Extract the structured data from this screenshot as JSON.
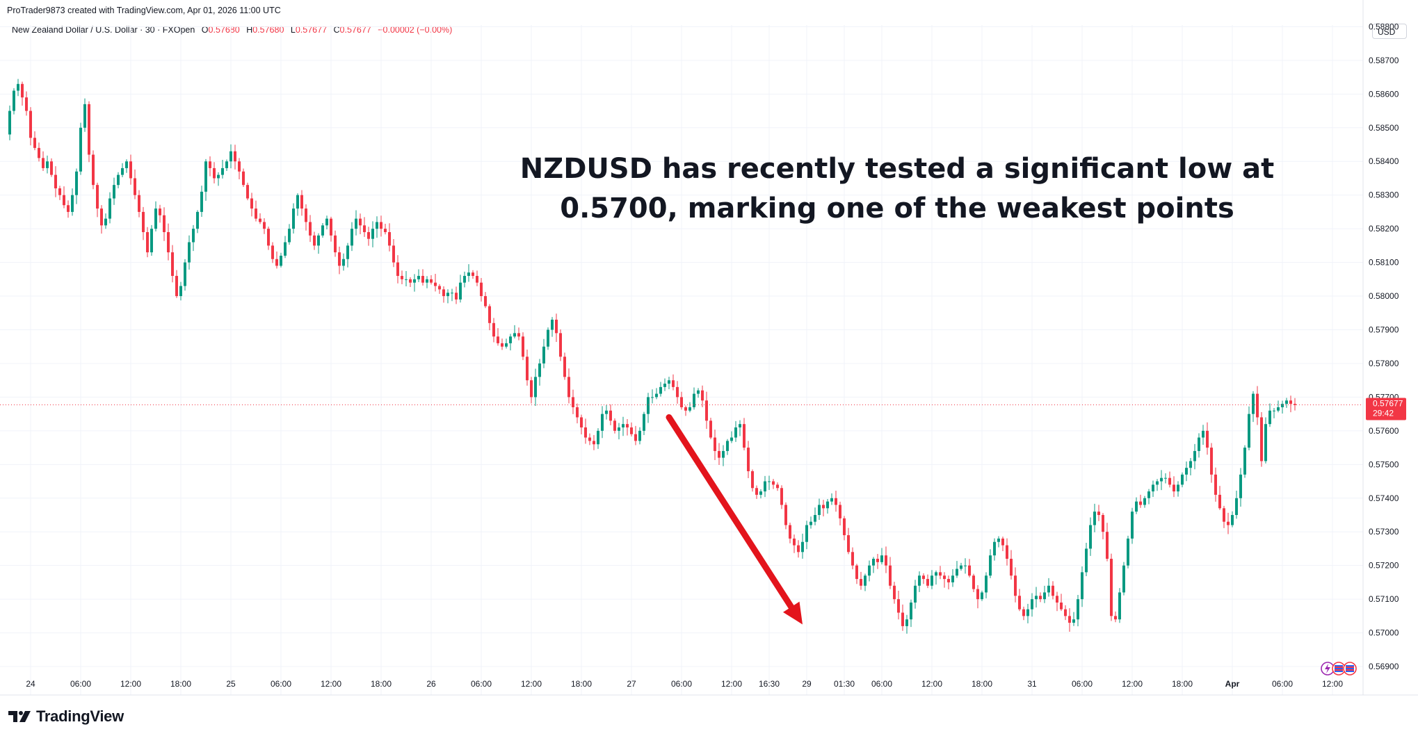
{
  "header": {
    "created_by": "ProTrader9873 created with TradingView.com, Apr 01, 2026 11:00 UTC",
    "symbol": "New Zealand Dollar / U.S. Dollar · 30 · FXOpen",
    "o_label": "O",
    "o_value": "0.57680",
    "h_label": "H",
    "h_value": "0.57680",
    "l_label": "L",
    "l_value": "0.57677",
    "c_label": "C",
    "c_value": "0.57677",
    "change": "−0.00002 (−0.00%)",
    "currency": "USD"
  },
  "brand": {
    "name": "TradingView"
  },
  "price_tag": {
    "price": "0.57677",
    "countdown": "29:42"
  },
  "annotation": {
    "line1": "NZDUSD has recently tested a significant low at",
    "line2": "0.5700, marking one of the weakest points",
    "arrow_color": "#e3141c",
    "arrow_from": {
      "bar": 158,
      "price": 0.5764
    },
    "arrow_to": {
      "bar": 190,
      "price": 0.57025
    }
  },
  "colors": {
    "up": "#089981",
    "down": "#f23645",
    "last_price": "#f23645",
    "grid": "#f0f3fa"
  },
  "chart_data": {
    "type": "candlestick",
    "title": "",
    "y_ticks": [
      "0.58800",
      "0.58700",
      "0.58600",
      "0.58500",
      "0.58400",
      "0.58300",
      "0.58200",
      "0.58100",
      "0.58000",
      "0.57900",
      "0.57800",
      "0.57700",
      "0.57600",
      "0.57500",
      "0.57400",
      "0.57300",
      "0.57200",
      "0.57100",
      "0.57000",
      "0.56900"
    ],
    "ylim": [
      0.56865,
      0.58805
    ],
    "last_price": 0.57677,
    "x_ticks": [
      {
        "bar": 5,
        "label": "24"
      },
      {
        "bar": 17,
        "label": "06:00"
      },
      {
        "bar": 29,
        "label": "12:00"
      },
      {
        "bar": 41,
        "label": "18:00"
      },
      {
        "bar": 53,
        "label": "25"
      },
      {
        "bar": 65,
        "label": "06:00"
      },
      {
        "bar": 77,
        "label": "12:00"
      },
      {
        "bar": 89,
        "label": "18:00"
      },
      {
        "bar": 101,
        "label": "26"
      },
      {
        "bar": 113,
        "label": "06:00"
      },
      {
        "bar": 125,
        "label": "12:00"
      },
      {
        "bar": 137,
        "label": "18:00"
      },
      {
        "bar": 149,
        "label": "27"
      },
      {
        "bar": 161,
        "label": "06:00"
      },
      {
        "bar": 173,
        "label": "12:00"
      },
      {
        "bar": 182,
        "label": "16:30"
      },
      {
        "bar": 191,
        "label": "29"
      },
      {
        "bar": 200,
        "label": "01:30"
      },
      {
        "bar": 209,
        "label": "06:00"
      },
      {
        "bar": 221,
        "label": "12:00"
      },
      {
        "bar": 233,
        "label": "18:00"
      },
      {
        "bar": 245,
        "label": "31"
      },
      {
        "bar": 257,
        "label": "06:00"
      },
      {
        "bar": 269,
        "label": "12:00"
      },
      {
        "bar": 281,
        "label": "18:00"
      },
      {
        "bar": 293,
        "label": "Apr"
      },
      {
        "bar": 305,
        "label": "06:00"
      },
      {
        "bar": 317,
        "label": "12:00"
      }
    ],
    "closes": [
      0.5855,
      0.5861,
      0.5863,
      0.5859,
      0.5855,
      0.5847,
      0.5844,
      0.5841,
      0.5838,
      0.584,
      0.5836,
      0.5832,
      0.583,
      0.5827,
      0.5825,
      0.583,
      0.5837,
      0.585,
      0.5857,
      0.5842,
      0.5833,
      0.5826,
      0.5821,
      0.5823,
      0.5829,
      0.5833,
      0.5836,
      0.5838,
      0.584,
      0.5835,
      0.583,
      0.5825,
      0.5819,
      0.5813,
      0.582,
      0.5826,
      0.5824,
      0.5819,
      0.5813,
      0.5806,
      0.58,
      0.5803,
      0.581,
      0.5816,
      0.582,
      0.5825,
      0.5831,
      0.584,
      0.5838,
      0.5835,
      0.5836,
      0.5838,
      0.584,
      0.5843,
      0.584,
      0.5837,
      0.5833,
      0.5829,
      0.5826,
      0.5823,
      0.5822,
      0.582,
      0.5815,
      0.5811,
      0.5809,
      0.5812,
      0.5816,
      0.582,
      0.5826,
      0.583,
      0.5826,
      0.5822,
      0.5818,
      0.5815,
      0.5818,
      0.5821,
      0.5823,
      0.5818,
      0.5813,
      0.5809,
      0.5811,
      0.5815,
      0.582,
      0.5823,
      0.5821,
      0.5819,
      0.5817,
      0.582,
      0.5822,
      0.582,
      0.5819,
      0.5815,
      0.581,
      0.5806,
      0.5805,
      0.5805,
      0.5804,
      0.5805,
      0.5806,
      0.5804,
      0.5805,
      0.5804,
      0.5803,
      0.5802,
      0.58,
      0.5801,
      0.5801,
      0.5799,
      0.5804,
      0.5806,
      0.5807,
      0.5806,
      0.5804,
      0.58,
      0.5797,
      0.5792,
      0.5788,
      0.5786,
      0.5785,
      0.5786,
      0.5788,
      0.5789,
      0.5788,
      0.5782,
      0.5775,
      0.577,
      0.5776,
      0.578,
      0.5785,
      0.579,
      0.5793,
      0.5789,
      0.5782,
      0.5776,
      0.577,
      0.5767,
      0.5764,
      0.5761,
      0.5758,
      0.5757,
      0.5756,
      0.576,
      0.5765,
      0.5766,
      0.5763,
      0.576,
      0.5761,
      0.5762,
      0.5761,
      0.5759,
      0.5757,
      0.576,
      0.5765,
      0.577,
      0.577,
      0.5771,
      0.5773,
      0.5774,
      0.5775,
      0.5773,
      0.577,
      0.5767,
      0.5766,
      0.5767,
      0.5771,
      0.5772,
      0.5769,
      0.5763,
      0.5758,
      0.5754,
      0.5752,
      0.5754,
      0.5757,
      0.5758,
      0.5761,
      0.5762,
      0.5755,
      0.5748,
      0.5743,
      0.5741,
      0.5742,
      0.5745,
      0.5745,
      0.5744,
      0.5743,
      0.5738,
      0.5732,
      0.5728,
      0.5726,
      0.5724,
      0.5727,
      0.5732,
      0.5733,
      0.5735,
      0.5738,
      0.5737,
      0.5739,
      0.574,
      0.5738,
      0.5734,
      0.5729,
      0.5724,
      0.572,
      0.5716,
      0.5714,
      0.5717,
      0.572,
      0.5722,
      0.5721,
      0.5723,
      0.572,
      0.5714,
      0.571,
      0.5706,
      0.5702,
      0.5704,
      0.5709,
      0.5714,
      0.5717,
      0.5716,
      0.5714,
      0.5717,
      0.5718,
      0.5717,
      0.5716,
      0.5715,
      0.5717,
      0.5719,
      0.572,
      0.572,
      0.5717,
      0.5713,
      0.571,
      0.5712,
      0.5717,
      0.5723,
      0.5727,
      0.5728,
      0.5726,
      0.5722,
      0.5717,
      0.5711,
      0.5707,
      0.5705,
      0.5707,
      0.571,
      0.5711,
      0.571,
      0.5712,
      0.5714,
      0.5711,
      0.5709,
      0.5707,
      0.5705,
      0.5703,
      0.5704,
      0.571,
      0.5718,
      0.5725,
      0.5732,
      0.5736,
      0.5735,
      0.573,
      0.5722,
      0.5705,
      0.5704,
      0.5712,
      0.572,
      0.5728,
      0.5736,
      0.5739,
      0.5738,
      0.574,
      0.5742,
      0.5744,
      0.5745,
      0.5746,
      0.5746,
      0.5744,
      0.5742,
      0.5744,
      0.5747,
      0.5749,
      0.5751,
      0.5754,
      0.5758,
      0.576,
      0.5755,
      0.5747,
      0.5741,
      0.5737,
      0.5733,
      0.5732,
      0.5735,
      0.574,
      0.5747,
      0.5755,
      0.5765,
      0.5771,
      0.5764,
      0.5751,
      0.5762,
      0.5766,
      0.5766,
      0.5767,
      0.5768,
      0.5769,
      0.5768,
      0.5767677
    ]
  }
}
